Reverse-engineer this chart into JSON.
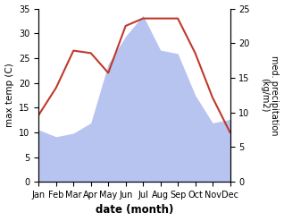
{
  "months": [
    "Jan",
    "Feb",
    "Mar",
    "Apr",
    "May",
    "Jun",
    "Jul",
    "Aug",
    "Sep",
    "Oct",
    "Nov",
    "Dec"
  ],
  "month_indices": [
    0,
    1,
    2,
    3,
    4,
    5,
    6,
    7,
    8,
    9,
    10,
    11
  ],
  "temperature": [
    13.5,
    19.0,
    26.5,
    26.0,
    22.0,
    31.5,
    33.0,
    33.0,
    33.0,
    26.0,
    17.0,
    10.0
  ],
  "precipitation": [
    7.5,
    6.5,
    7.0,
    8.5,
    17.0,
    21.0,
    24.0,
    19.0,
    18.5,
    12.5,
    8.5,
    9.0
  ],
  "temp_color": "#c0392b",
  "precip_color": "#b8c4f0",
  "left_ylim": [
    0,
    35
  ],
  "right_ylim": [
    0,
    25
  ],
  "left_yticks": [
    0,
    5,
    10,
    15,
    20,
    25,
    30,
    35
  ],
  "right_yticks": [
    0,
    5,
    10,
    15,
    20,
    25
  ],
  "xlabel": "date (month)",
  "ylabel_left": "max temp (C)",
  "ylabel_right": "med. precipitation\n(kg/m2)",
  "figsize": [
    3.18,
    2.47
  ],
  "dpi": 100
}
